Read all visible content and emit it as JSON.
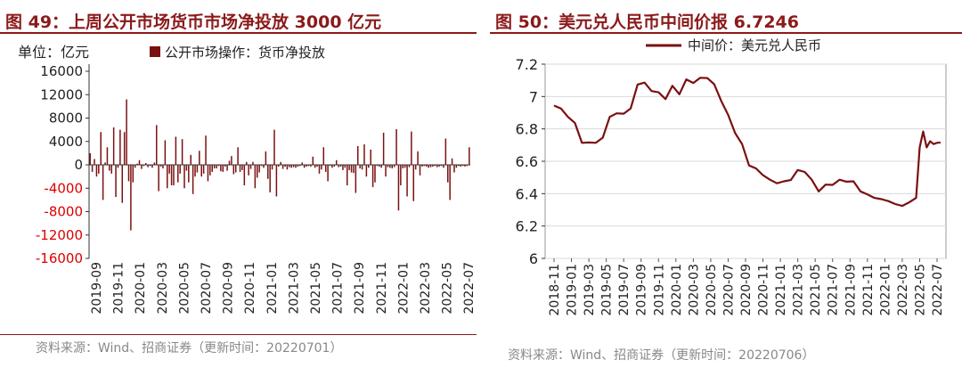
{
  "colors": {
    "accent": "#8B1A1A",
    "series": "#7A1010",
    "grid": "#d9d9d9"
  },
  "left_panel": {
    "title": "图 49：上周公开市场货币市场净投放 3000 亿元",
    "source": "资料来源：Wind、招商证券（更新时间：20220701）"
  },
  "right_panel": {
    "title": "图 50：美元兑人民币中间价报 6.7246",
    "source": "资料来源：Wind、招商证券（更新时间：20220706）"
  },
  "chart_data": [
    {
      "type": "bar",
      "unit_label": "单位：亿元",
      "legend": "公开市场操作：货币净投放",
      "ylim": [
        -16000,
        16000
      ],
      "yticks": [
        16000,
        12000,
        8000,
        4000,
        0,
        -4000,
        -8000,
        -12000,
        -16000
      ],
      "ytick_labels": [
        "16000",
        "12000",
        "8000",
        "4000",
        "0",
        "-4000",
        "-8000",
        "-12000",
        "-16000"
      ],
      "xtick_labels": [
        "2019-09",
        "2019-11",
        "2020-01",
        "2020-03",
        "2020-05",
        "2020-07",
        "2020-09",
        "2020-11",
        "2021-01",
        "2021-03",
        "2021-05",
        "2021-07",
        "2021-09",
        "2021-11",
        "2022-01",
        "2022-03",
        "2022-05",
        "2022-07"
      ],
      "values": [
        2000,
        -1200,
        1000,
        -2000,
        -1500,
        5600,
        -6000,
        400,
        3000,
        -1000,
        -1500,
        6400,
        -5500,
        -500,
        6000,
        -6500,
        5600,
        11200,
        -2800,
        -11200,
        -3000,
        -500,
        200,
        800,
        -700,
        -200,
        300,
        -400,
        -200,
        -500,
        400,
        6800,
        -4500,
        -300,
        -600,
        4200,
        -4000,
        -1500,
        -3500,
        -3500,
        4800,
        -3000,
        -1500,
        4400,
        -4000,
        -1000,
        -3000,
        1700,
        -5000,
        -2000,
        -1300,
        2400,
        -2000,
        -1500,
        5000,
        -2800,
        -1800,
        -1200,
        -600,
        -600,
        -200,
        -1100,
        -1200,
        -300,
        -1000,
        700,
        1500,
        -1600,
        -1300,
        3000,
        -1200,
        -900,
        -3500,
        500,
        -1800,
        -700,
        500,
        -4000,
        -2200,
        -1300,
        -200,
        -500,
        2300,
        -2400,
        -4700,
        -800,
        6000,
        -5400,
        -300,
        500,
        -700,
        -300,
        -800,
        -400,
        -500,
        -400,
        -500,
        -300,
        -200,
        400,
        -500,
        -300,
        -200,
        -300,
        1400,
        -500,
        -300,
        -1500,
        -800,
        3000,
        -1200,
        -2800,
        -200,
        -500,
        -300,
        800,
        -400,
        -300,
        -900,
        -500,
        -3500,
        -900,
        -1300,
        -1400,
        -4800,
        3200,
        -600,
        -800,
        3500,
        -2000,
        -500,
        2600,
        -3800,
        -3000,
        -200,
        -300,
        -500,
        5500,
        -2000,
        -400,
        -500,
        -600,
        -400,
        6100,
        -7800,
        -3500,
        -600,
        -500,
        -5400,
        -400,
        5700,
        -6200,
        -800,
        2300,
        -1800,
        -300,
        -200,
        -300,
        -500,
        -400,
        -300,
        -200,
        -400,
        -300,
        -200,
        -500,
        4500,
        -3000,
        -6000,
        1100,
        -1300,
        -500,
        -200,
        -300,
        -200,
        -300,
        -200,
        3000
      ]
    },
    {
      "type": "line",
      "legend": "中间价：美元兑人民币",
      "ylim": [
        6.0,
        7.2
      ],
      "yticks": [
        7.2,
        7.0,
        6.8,
        6.6,
        6.4,
        6.2,
        6.0
      ],
      "ytick_labels": [
        "7.2",
        "7",
        "6.8",
        "6.6",
        "6.4",
        "6.2",
        "6"
      ],
      "xtick_labels": [
        "2018-11",
        "2019-01",
        "2019-03",
        "2019-05",
        "2019-07",
        "2019-09",
        "2019-11",
        "2020-01",
        "2020-03",
        "2020-05",
        "2020-07",
        "2020-09",
        "2020-11",
        "2021-01",
        "2021-03",
        "2021-05",
        "2021-07",
        "2021-09",
        "2021-11",
        "2022-01",
        "2022-03",
        "2022-05",
        "2022-07"
      ],
      "x": [
        0,
        0.4,
        0.8,
        1.2,
        1.6,
        2,
        2.4,
        2.8,
        3.2,
        3.6,
        4,
        4.4,
        4.8,
        5.2,
        5.6,
        6,
        6.4,
        6.8,
        7.2,
        7.6,
        8,
        8.4,
        8.8,
        9.2,
        9.6,
        10,
        10.4,
        10.8,
        11.2,
        11.6,
        12,
        12.4,
        12.8,
        13.2,
        13.6,
        14,
        14.4,
        14.8,
        15.2,
        15.6,
        16,
        16.4,
        16.8,
        17.2,
        17.6,
        18,
        18.4,
        18.8,
        19.2,
        19.6,
        20,
        20.4,
        20.8,
        21,
        21.2,
        21.4,
        21.6,
        21.8,
        22,
        22.1,
        22.2
      ],
      "y": [
        6.95,
        6.92,
        6.88,
        6.83,
        6.72,
        6.71,
        6.72,
        6.74,
        6.88,
        6.89,
        6.9,
        6.92,
        7.08,
        7.08,
        7.04,
        7.02,
        6.99,
        7.06,
        7.02,
        7.1,
        7.09,
        7.11,
        7.12,
        7.07,
        6.98,
        6.88,
        6.78,
        6.7,
        6.58,
        6.55,
        6.52,
        6.48,
        6.47,
        6.47,
        6.49,
        6.54,
        6.54,
        6.48,
        6.42,
        6.45,
        6.46,
        6.48,
        6.48,
        6.47,
        6.42,
        6.39,
        6.38,
        6.36,
        6.36,
        6.33,
        6.33,
        6.34,
        6.38,
        6.68,
        6.79,
        6.68,
        6.73,
        6.7,
        6.72,
        6.71,
        6.72
      ]
    }
  ]
}
